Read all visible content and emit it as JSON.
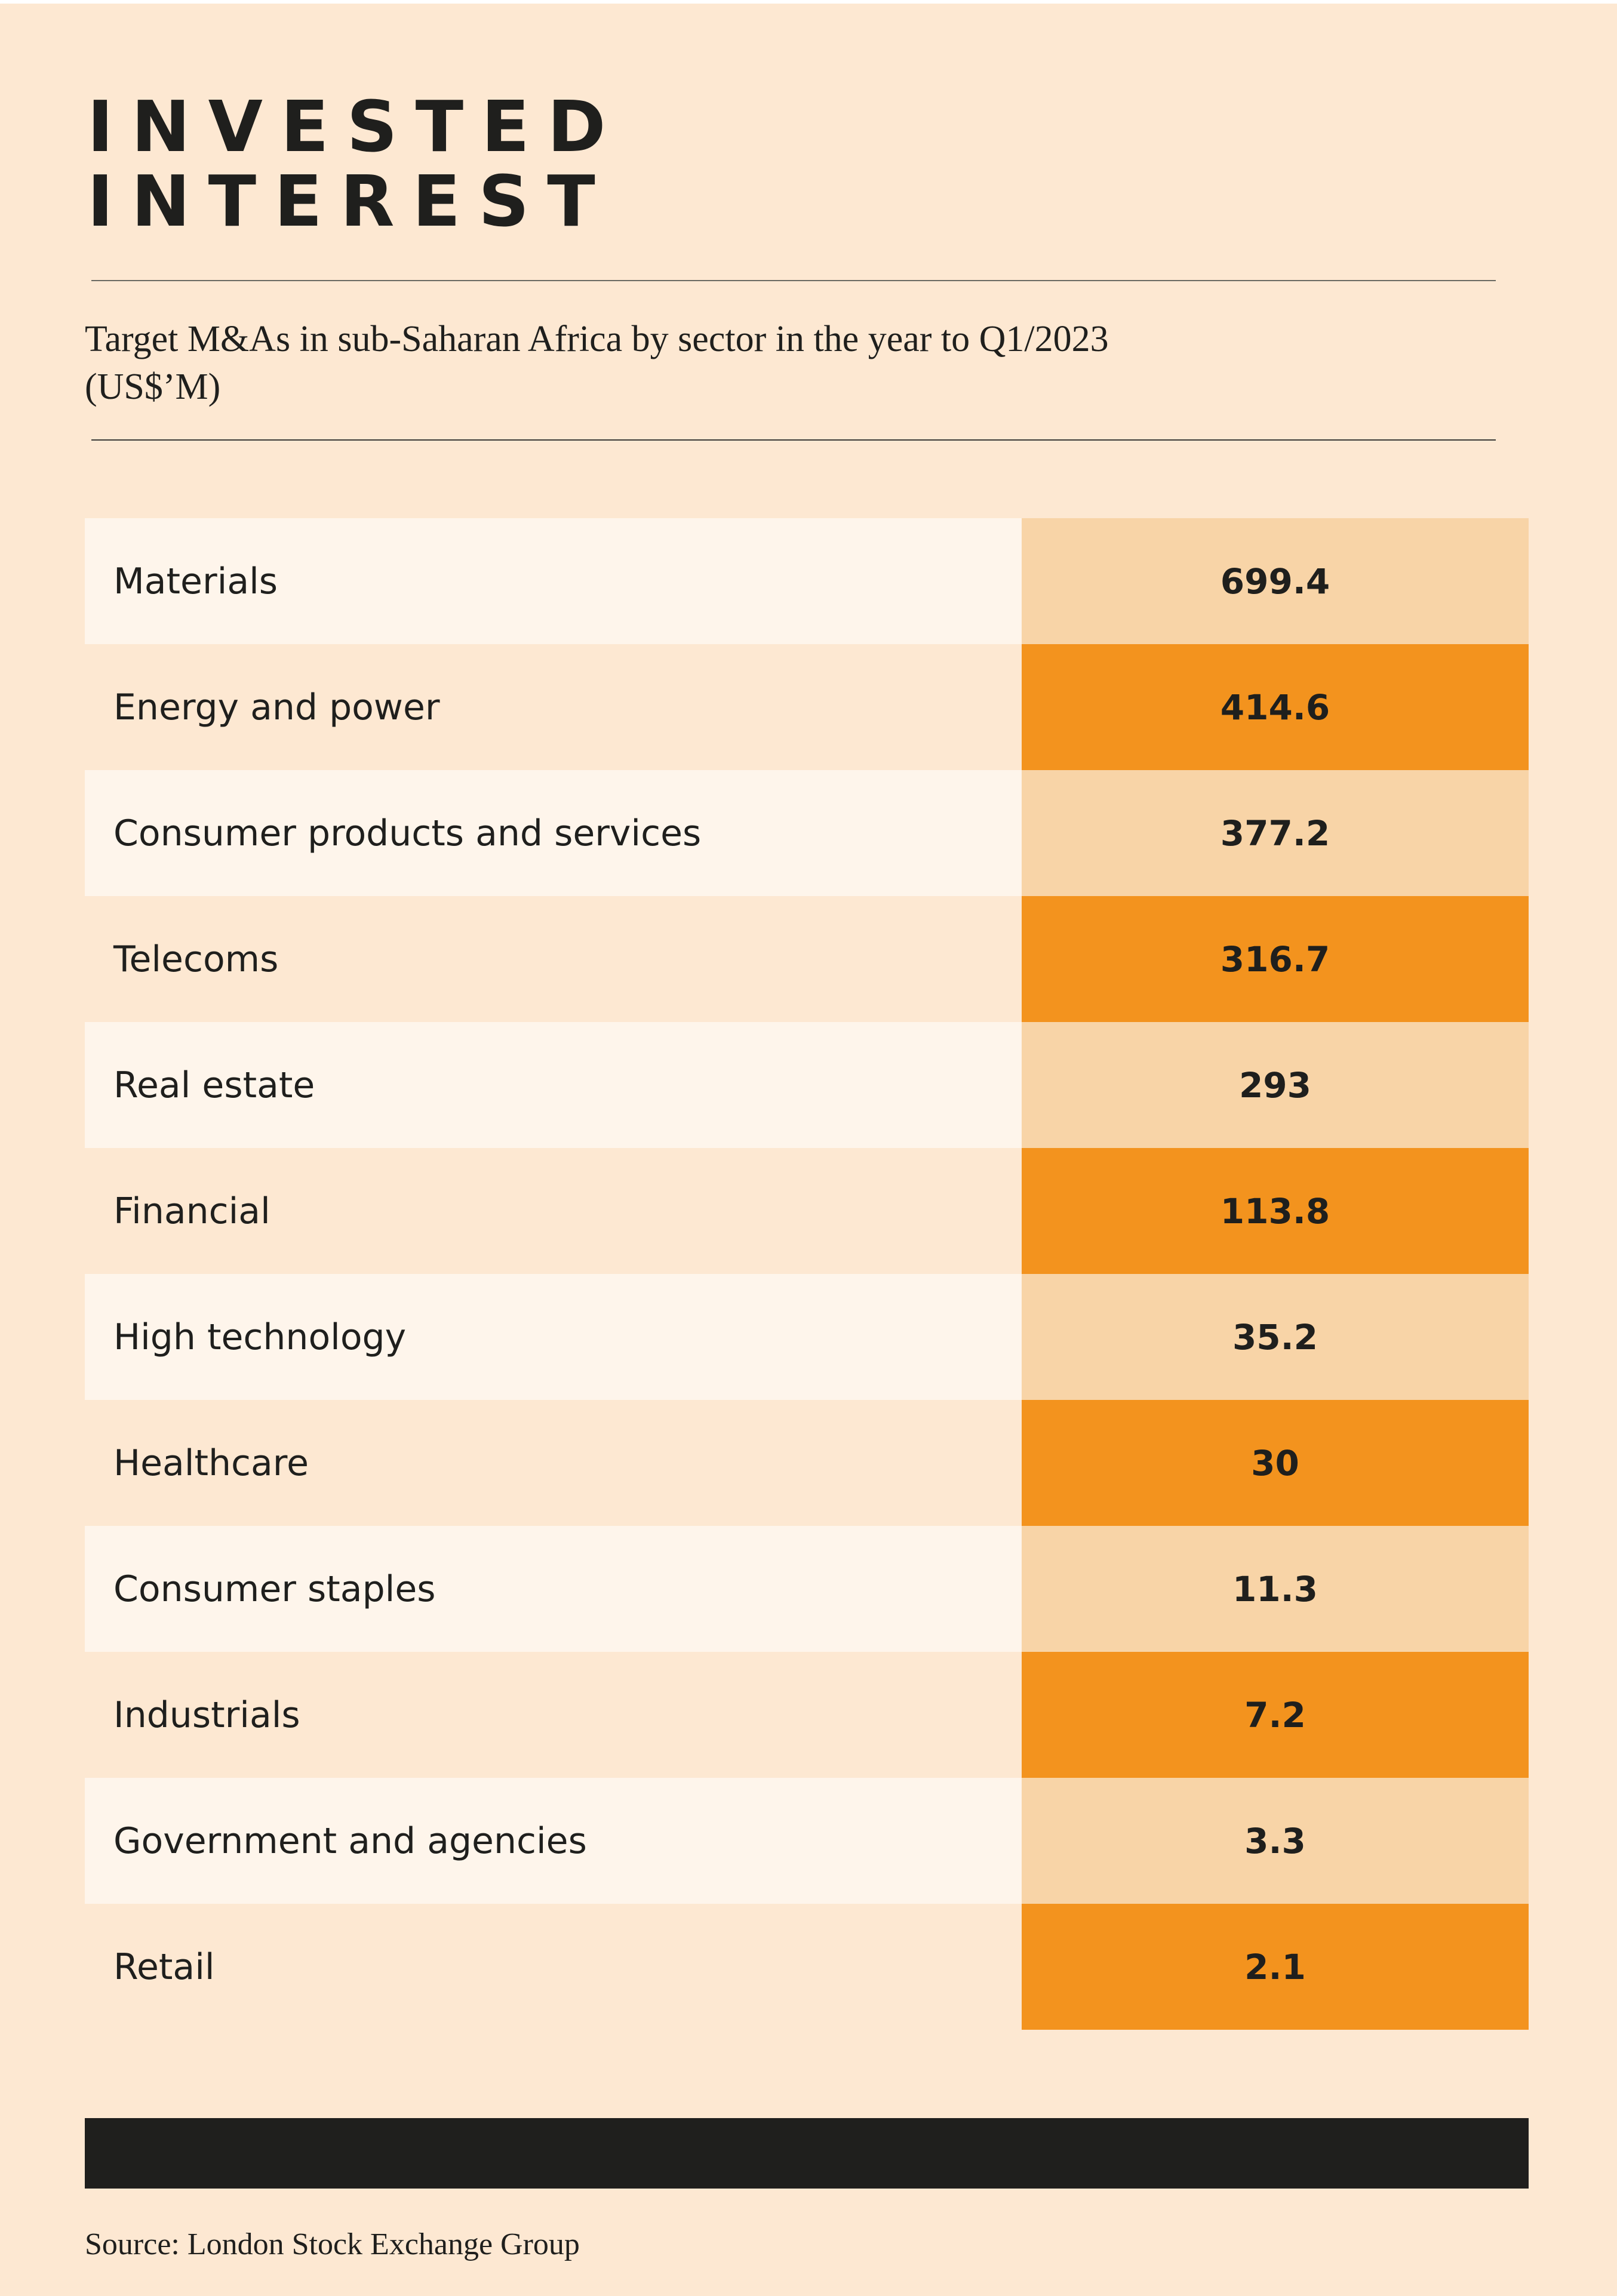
{
  "title": {
    "line1": "INVESTED",
    "line2": "INTEREST"
  },
  "subtitle": "Target M&As in sub-Saharan Africa by sector in the year to Q1/2023 (US$’M)",
  "colors": {
    "background": "#fde8d2",
    "label_light": "#fef5eb",
    "label_alt": "#fde8d2",
    "value_light": "#f8d4a7",
    "value_accent": "#f3931e",
    "text": "#1f1f1d",
    "footer_bar": "#1f1f1d"
  },
  "table": {
    "rows": [
      {
        "sector": "Materials",
        "value": "699.4"
      },
      {
        "sector": "Energy and power",
        "value": "414.6"
      },
      {
        "sector": "Consumer products and services",
        "value": "377.2"
      },
      {
        "sector": "Telecoms",
        "value": "316.7"
      },
      {
        "sector": "Real estate",
        "value": "293"
      },
      {
        "sector": "Financial",
        "value": "113.8"
      },
      {
        "sector": "High technology",
        "value": "35.2"
      },
      {
        "sector": "Healthcare",
        "value": "30"
      },
      {
        "sector": "Consumer staples",
        "value": "11.3"
      },
      {
        "sector": "Industrials",
        "value": "7.2"
      },
      {
        "sector": "Government and agencies",
        "value": "3.3"
      },
      {
        "sector": "Retail",
        "value": "2.1"
      }
    ]
  },
  "source": "Source: London Stock Exchange Group"
}
